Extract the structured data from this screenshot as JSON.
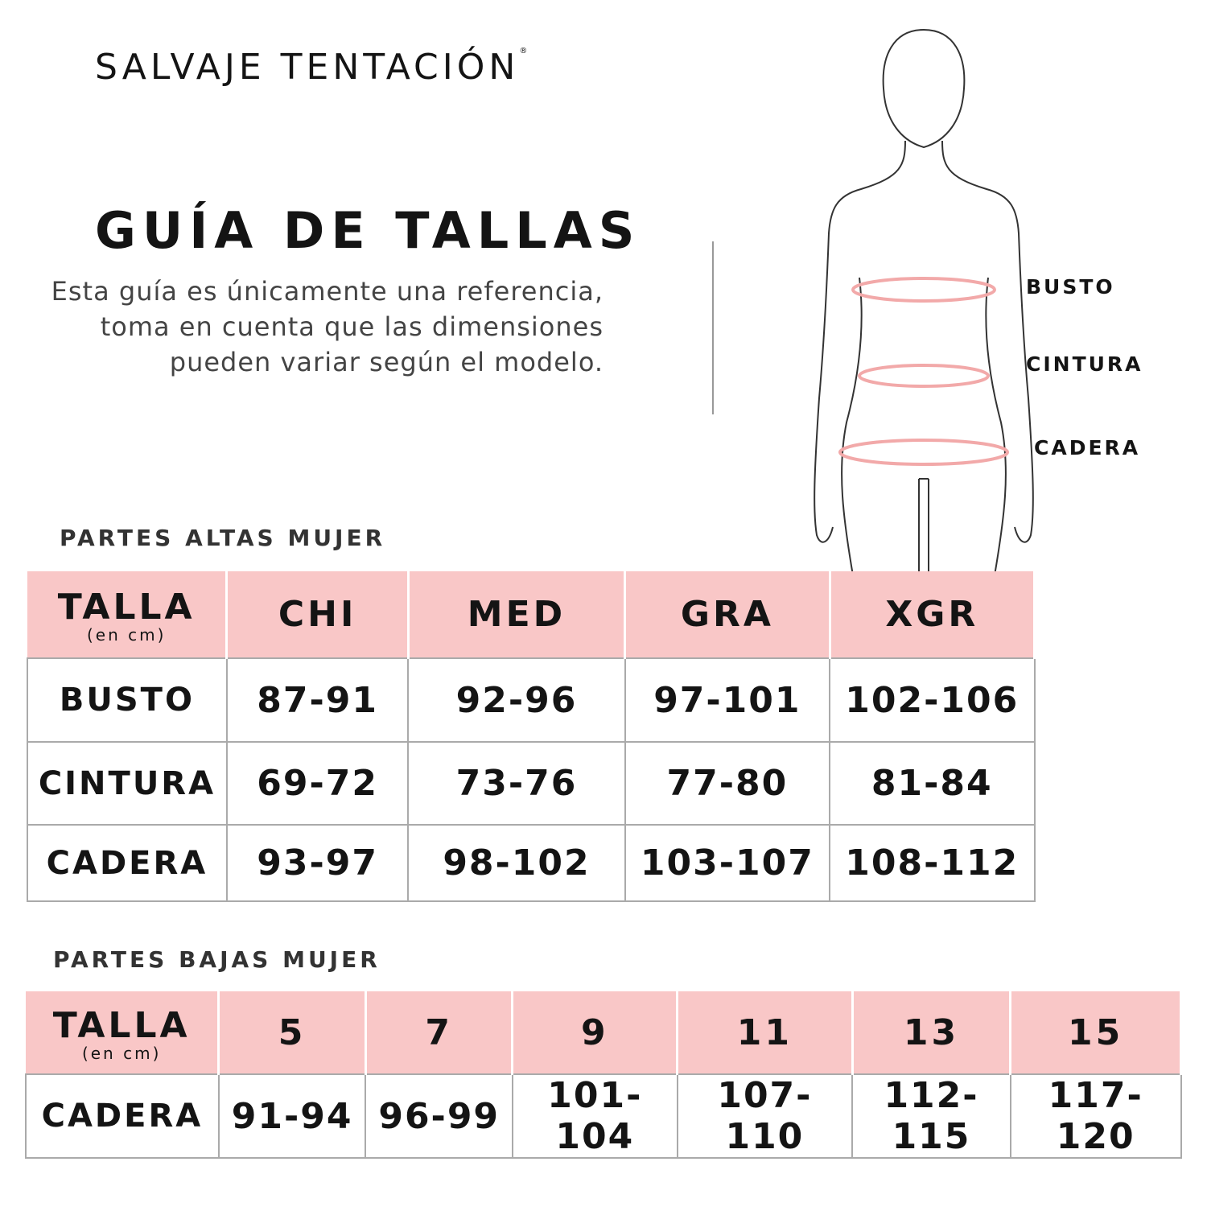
{
  "brand": {
    "name": "SALVAJE TENTACIÓN",
    "mark": "®"
  },
  "title": "GUÍA DE TALLAS",
  "description": "Esta guía es únicamente una referencia, toma en cuenta que las dimensiones pueden variar según el modelo.",
  "figure": {
    "labels": [
      "BUSTO",
      "CINTURA",
      "CADERA"
    ],
    "measure_color": "#f2a9a9"
  },
  "colors": {
    "header_bg": "#f9c7c7"
  },
  "upper": {
    "section_title": "PARTES ALTAS MUJER",
    "header_label": "TALLA",
    "header_sub": "(en cm)",
    "sizes": [
      "CHI",
      "MED",
      "GRA",
      "XGR"
    ],
    "rows": [
      {
        "label": "BUSTO",
        "values": [
          "87-91",
          "92-96",
          "97-101",
          "102-106"
        ]
      },
      {
        "label": "CINTURA",
        "values": [
          "69-72",
          "73-76",
          "77-80",
          "81-84"
        ]
      },
      {
        "label": "CADERA",
        "values": [
          "93-97",
          "98-102",
          "103-107",
          "108-112"
        ]
      }
    ]
  },
  "lower": {
    "section_title": "PARTES BAJAS MUJER",
    "header_label": "TALLA",
    "header_sub": "(en cm)",
    "sizes": [
      "5",
      "7",
      "9",
      "11",
      "13",
      "15"
    ],
    "rows": [
      {
        "label": "CADERA",
        "values": [
          "91-94",
          "96-99",
          "101-104",
          "107-110",
          "112-115",
          "117-120"
        ]
      }
    ]
  }
}
